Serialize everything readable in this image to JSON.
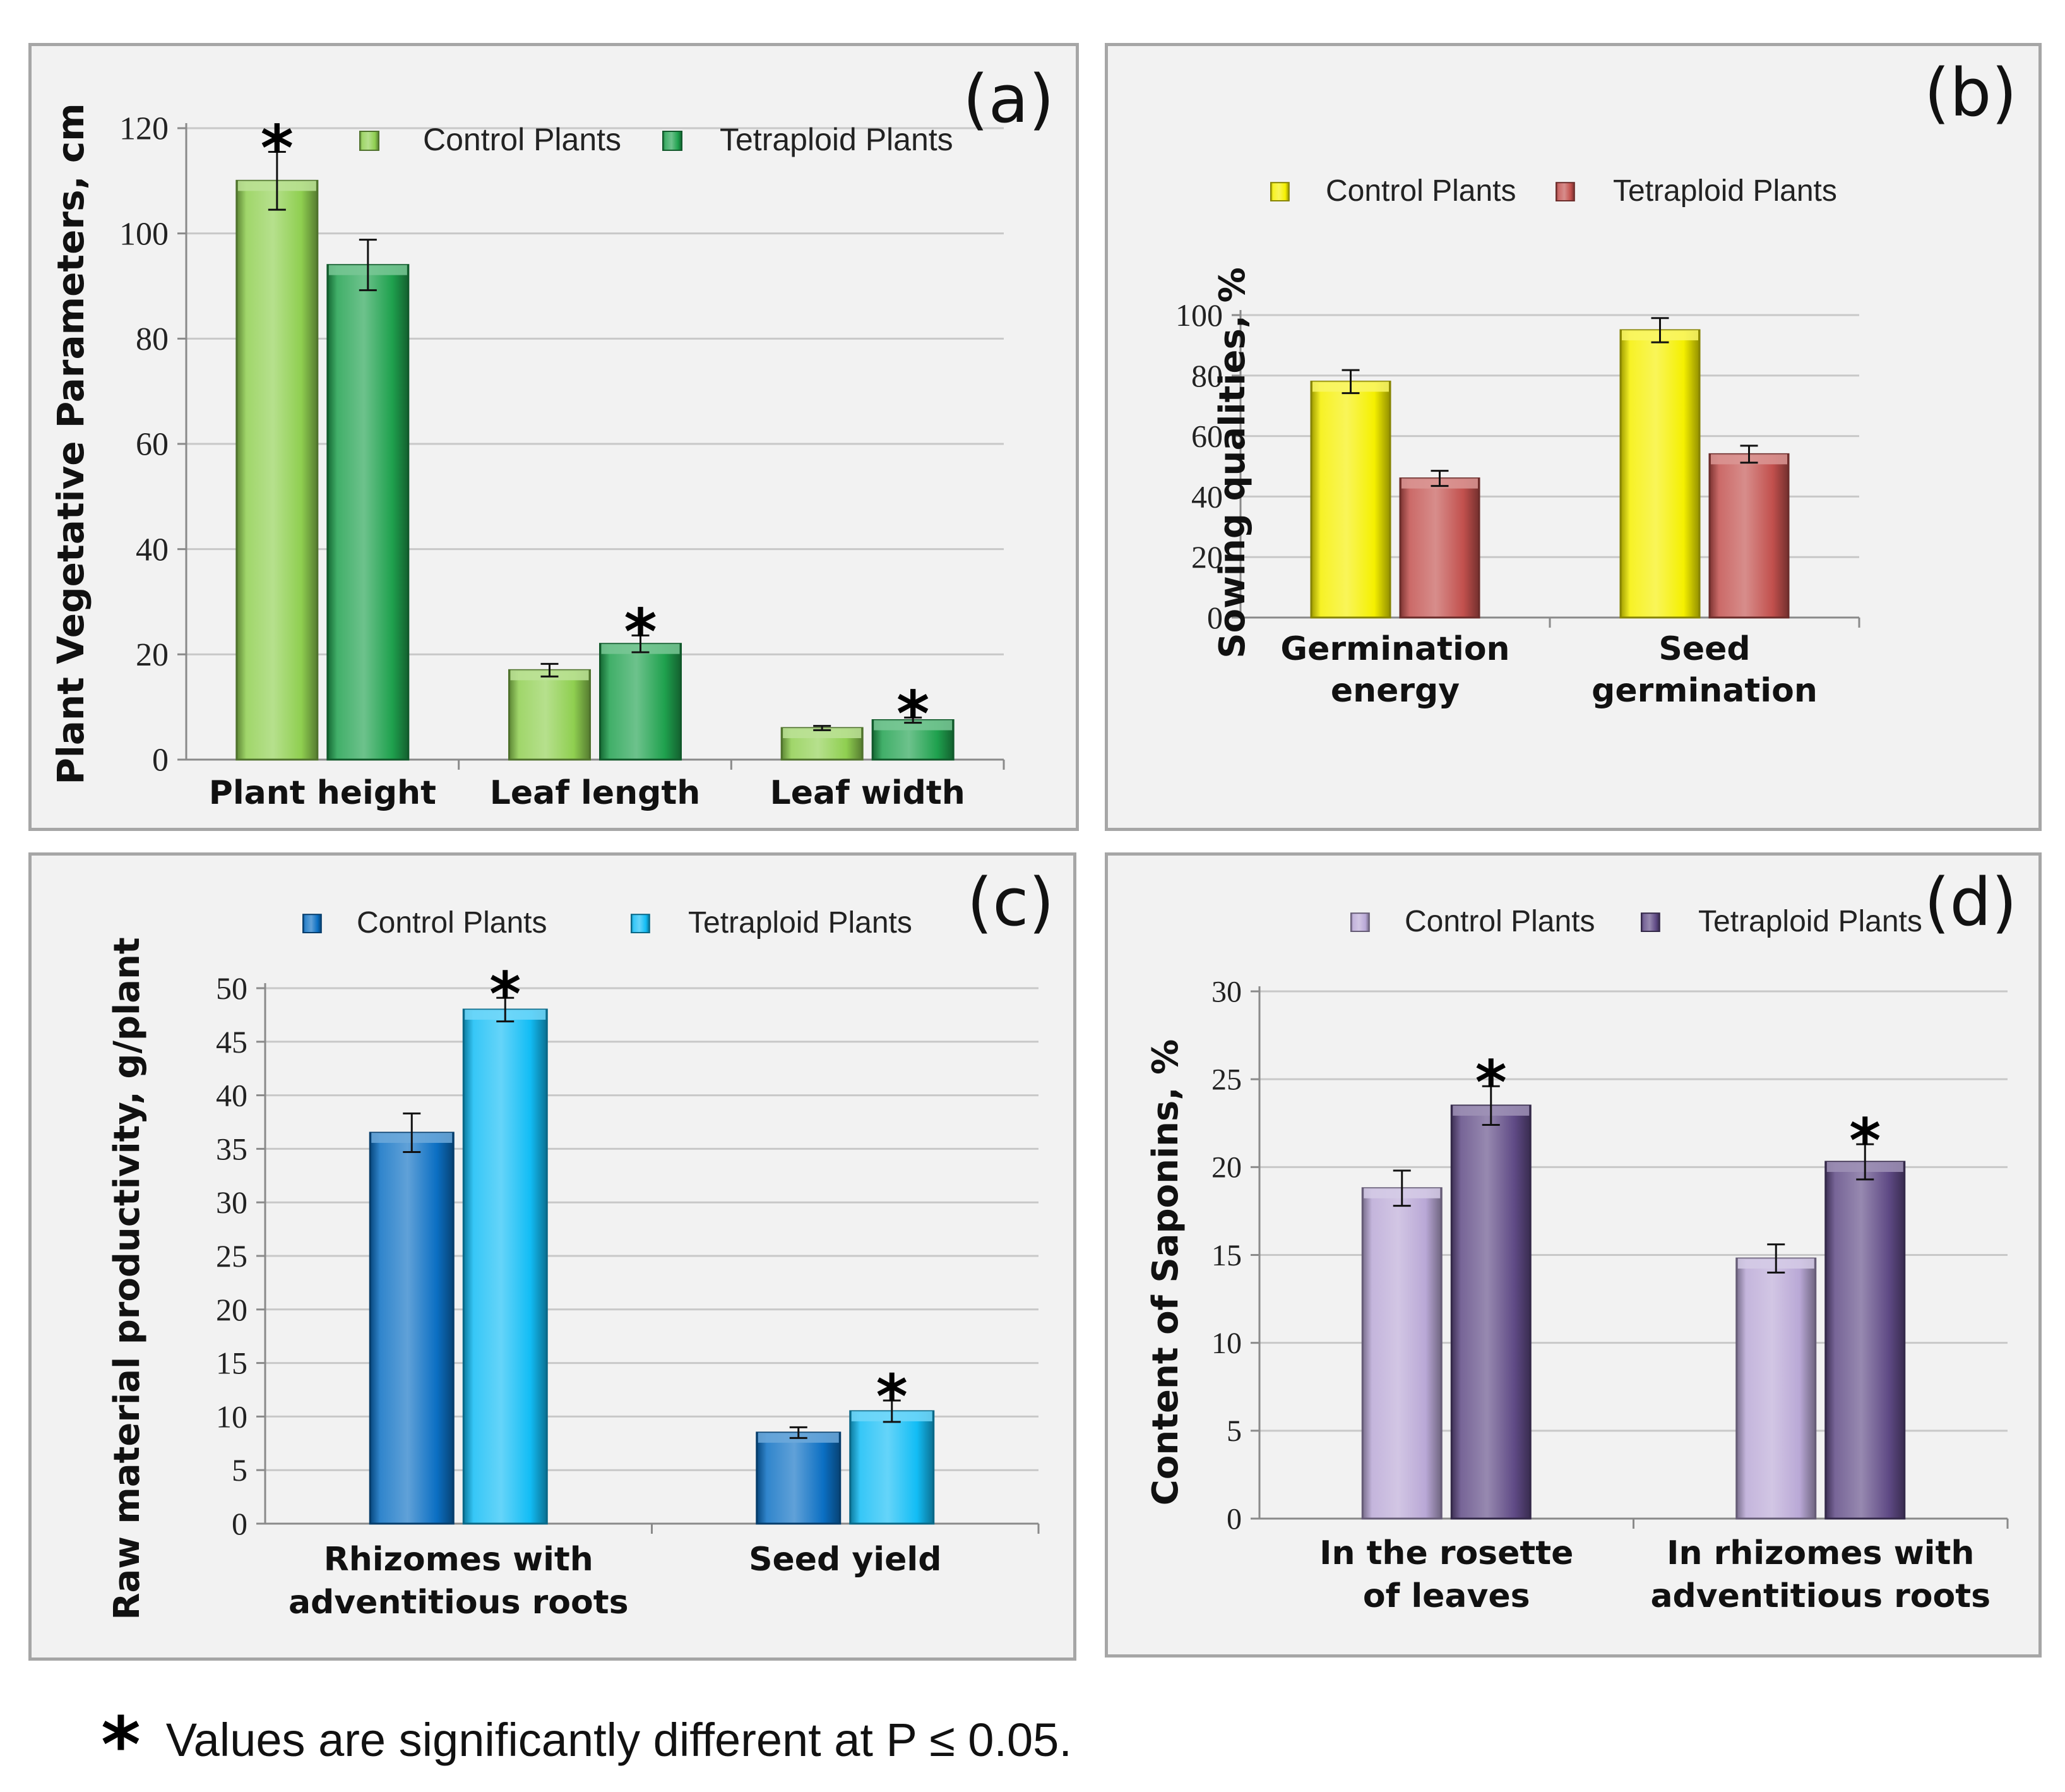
{
  "chart_data": [
    {
      "id": "a",
      "type": "bar",
      "panel_label": "(a)",
      "ylabel": "Plant Vegetative Parameters, cm",
      "ylim": [
        0,
        120
      ],
      "yticks": [
        "0",
        "20",
        "40",
        "60",
        "80",
        "100",
        "120"
      ],
      "tick_step": 20,
      "categories": [
        "Plant height",
        "Leaf length",
        "Leaf width"
      ],
      "series": [
        {
          "name": "Control Plants",
          "color": "#8fcf50",
          "values": [
            110,
            17,
            6
          ],
          "errors": [
            5.5,
            1.2,
            0.4
          ]
        },
        {
          "name": "Tetraploid Plants",
          "color": "#1fa14e",
          "values": [
            94,
            22,
            7.5
          ],
          "errors": [
            4.8,
            1.6,
            0.5
          ]
        }
      ],
      "significant": [
        [
          0,
          0
        ],
        [
          1,
          1
        ],
        [
          1,
          2
        ]
      ],
      "significance_mark": "*",
      "legend": "top"
    },
    {
      "id": "b",
      "type": "bar",
      "panel_label": "(b)",
      "ylabel": "Sowing qualities, %",
      "ylim": [
        0,
        100
      ],
      "yticks": [
        "0",
        "20",
        "40",
        "60",
        "80",
        "100"
      ],
      "tick_step": 20,
      "categories": [
        "Germination\nenergy",
        "Seed\ngermination"
      ],
      "series": [
        {
          "name": "Control Plants",
          "color": "#f5f000",
          "values": [
            78,
            95
          ],
          "errors": [
            3.8,
            4
          ]
        },
        {
          "name": "Tetraploid Plants",
          "color": "#c2504d",
          "values": [
            46,
            54
          ],
          "errors": [
            2.5,
            2.8
          ]
        }
      ],
      "significant": [],
      "significance_mark": "*",
      "legend": "top"
    },
    {
      "id": "c",
      "type": "bar",
      "panel_label": "(c)",
      "ylabel": "Raw material productivity, g/plant",
      "ylim": [
        0,
        50
      ],
      "yticks": [
        "0",
        "5",
        "10",
        "15",
        "20",
        "25",
        "30",
        "35",
        "40",
        "45",
        "50"
      ],
      "tick_step": 5,
      "categories": [
        "Rhizomes with\nadventitious roots",
        "Seed yield"
      ],
      "series": [
        {
          "name": "Control Plants",
          "color": "#0b6fc3",
          "values": [
            36.5,
            8.5
          ],
          "errors": [
            1.8,
            0.5
          ]
        },
        {
          "name": "Tetraploid Plants",
          "color": "#12bdf5",
          "values": [
            48,
            10.5
          ],
          "errors": [
            1.1,
            1
          ]
        }
      ],
      "significant": [
        [
          1,
          0
        ],
        [
          1,
          1
        ]
      ],
      "significance_mark": "*",
      "legend": "top"
    },
    {
      "id": "d",
      "type": "bar",
      "panel_label": "(d)",
      "ylabel": "Content of Saponins, %",
      "ylim": [
        0,
        30
      ],
      "yticks": [
        "0",
        "5",
        "10",
        "15",
        "20",
        "25",
        "30"
      ],
      "tick_step": 5,
      "categories": [
        "In the rosette\nof leaves",
        "In rhizomes with\nadventitious roots"
      ],
      "series": [
        {
          "name": "Control Plants",
          "color": "#b9a8d6",
          "values": [
            18.8,
            14.8
          ],
          "errors": [
            1,
            0.8
          ]
        },
        {
          "name": "Tetraploid Plants",
          "color": "#5f4a85",
          "values": [
            23.5,
            20.3
          ],
          "errors": [
            1.1,
            1
          ]
        }
      ],
      "significant": [
        [
          1,
          0
        ],
        [
          1,
          1
        ]
      ],
      "significance_mark": "*",
      "legend": "top"
    }
  ],
  "footnote": {
    "mark": "*",
    "text": "Values are significantly different at P ≤ 0.05."
  }
}
